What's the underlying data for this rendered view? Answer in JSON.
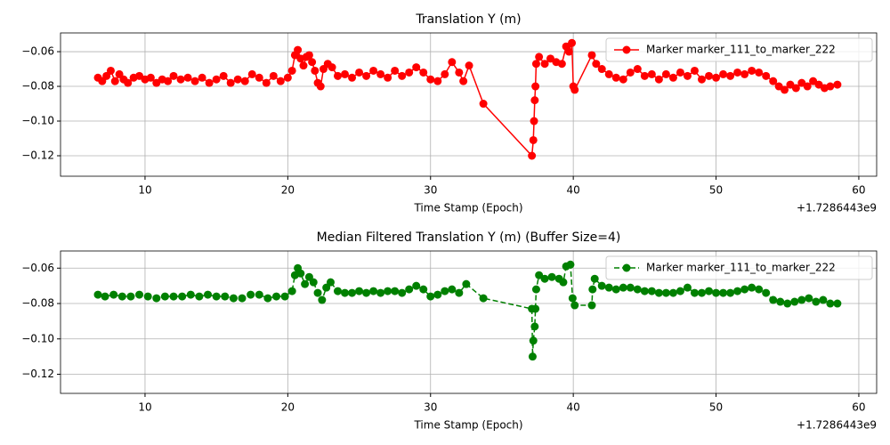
{
  "chart_data": [
    {
      "type": "line",
      "title": "Translation Y (m)",
      "xlabel": "Time Stamp (Epoch)",
      "x_offset_label": "+1.7286443e9",
      "x": [
        6.7,
        7.0,
        7.3,
        7.6,
        7.9,
        8.2,
        8.5,
        8.8,
        9.2,
        9.6,
        10.0,
        10.4,
        10.8,
        11.2,
        11.6,
        12.0,
        12.5,
        13.0,
        13.5,
        14.0,
        14.5,
        15.0,
        15.5,
        16.0,
        16.5,
        17.0,
        17.5,
        18.0,
        18.5,
        19.0,
        19.5,
        20.0,
        20.3,
        20.5,
        20.7,
        20.9,
        21.1,
        21.3,
        21.5,
        21.7,
        21.9,
        22.1,
        22.3,
        22.5,
        22.8,
        23.1,
        23.5,
        24.0,
        24.5,
        25.0,
        25.5,
        26.0,
        26.5,
        27.0,
        27.5,
        28.0,
        28.5,
        29.0,
        29.5,
        30.0,
        30.5,
        31.0,
        31.5,
        32.0,
        32.3,
        32.7,
        33.7,
        37.1,
        37.2,
        37.25,
        37.3,
        37.35,
        37.4,
        37.6,
        38.0,
        38.4,
        38.8,
        39.2,
        39.5,
        39.7,
        39.9,
        40.0,
        40.1,
        41.3,
        41.6,
        42.0,
        42.5,
        43.0,
        43.5,
        44.0,
        44.5,
        45.0,
        45.5,
        46.0,
        46.5,
        47.0,
        47.5,
        48.0,
        48.5,
        49.0,
        49.5,
        50.0,
        50.5,
        51.0,
        51.5,
        52.0,
        52.5,
        53.0,
        53.5,
        54.0,
        54.4,
        54.8,
        55.2,
        55.6,
        56.0,
        56.4,
        56.8,
        57.2,
        57.6,
        58.0,
        58.5
      ],
      "series": [
        {
          "name": "Marker marker_111_to_marker_222",
          "color": "#ff0000",
          "linestyle": "solid",
          "values": [
            -0.075,
            -0.077,
            -0.074,
            -0.071,
            -0.077,
            -0.073,
            -0.076,
            -0.078,
            -0.075,
            -0.074,
            -0.076,
            -0.075,
            -0.078,
            -0.076,
            -0.077,
            -0.074,
            -0.076,
            -0.075,
            -0.077,
            -0.075,
            -0.078,
            -0.076,
            -0.074,
            -0.078,
            -0.076,
            -0.077,
            -0.073,
            -0.075,
            -0.078,
            -0.074,
            -0.077,
            -0.075,
            -0.071,
            -0.062,
            -0.059,
            -0.064,
            -0.068,
            -0.063,
            -0.062,
            -0.066,
            -0.071,
            -0.078,
            -0.08,
            -0.07,
            -0.067,
            -0.069,
            -0.074,
            -0.073,
            -0.075,
            -0.072,
            -0.074,
            -0.071,
            -0.073,
            -0.075,
            -0.071,
            -0.074,
            -0.072,
            -0.069,
            -0.072,
            -0.076,
            -0.077,
            -0.073,
            -0.066,
            -0.072,
            -0.077,
            -0.068,
            -0.09,
            -0.12,
            -0.111,
            -0.1,
            -0.088,
            -0.08,
            -0.067,
            -0.063,
            -0.067,
            -0.064,
            -0.066,
            -0.067,
            -0.057,
            -0.06,
            -0.055,
            -0.08,
            -0.082,
            -0.062,
            -0.067,
            -0.07,
            -0.073,
            -0.075,
            -0.076,
            -0.072,
            -0.07,
            -0.074,
            -0.073,
            -0.076,
            -0.073,
            -0.075,
            -0.072,
            -0.074,
            -0.071,
            -0.076,
            -0.074,
            -0.075,
            -0.073,
            -0.074,
            -0.072,
            -0.073,
            -0.071,
            -0.072,
            -0.074,
            -0.077,
            -0.08,
            -0.082,
            -0.079,
            -0.081,
            -0.078,
            -0.08,
            -0.077,
            -0.079,
            -0.081,
            -0.08,
            -0.079
          ]
        }
      ],
      "xlim": [
        4.08,
        61.25
      ],
      "ylim": [
        -0.1318,
        -0.0492
      ],
      "xticks": [
        10,
        20,
        30,
        40,
        50,
        60
      ],
      "yticks": [
        {
          "value": -0.12,
          "label": "−0.12"
        },
        {
          "value": -0.1,
          "label": "−0.10"
        },
        {
          "value": -0.08,
          "label": "−0.08"
        },
        {
          "value": -0.06,
          "label": "−0.06"
        }
      ],
      "grid": true,
      "legend": "upper right"
    },
    {
      "type": "line",
      "title": "Median Filtered Translation Y (m) (Buffer Size=4)",
      "xlabel": "Time Stamp (Epoch)",
      "x_offset_label": "+1.7286443e9",
      "x": [
        6.7,
        7.2,
        7.8,
        8.4,
        9.0,
        9.6,
        10.2,
        10.8,
        11.4,
        12.0,
        12.6,
        13.2,
        13.8,
        14.4,
        15.0,
        15.6,
        16.2,
        16.8,
        17.4,
        18.0,
        18.6,
        19.2,
        19.8,
        20.3,
        20.5,
        20.7,
        20.9,
        21.2,
        21.5,
        21.8,
        22.1,
        22.4,
        22.7,
        23.0,
        23.5,
        24.0,
        24.5,
        25.0,
        25.5,
        26.0,
        26.5,
        27.0,
        27.5,
        28.0,
        28.5,
        29.0,
        29.5,
        30.0,
        30.5,
        31.0,
        31.5,
        32.0,
        32.5,
        33.7,
        37.1,
        37.15,
        37.2,
        37.3,
        37.35,
        37.4,
        37.6,
        38.0,
        38.5,
        39.0,
        39.3,
        39.5,
        39.8,
        39.95,
        40.1,
        41.3,
        41.35,
        41.5,
        42.0,
        42.5,
        43.0,
        43.5,
        44.0,
        44.5,
        45.0,
        45.5,
        46.0,
        46.5,
        47.0,
        47.5,
        48.0,
        48.5,
        49.0,
        49.5,
        50.0,
        50.5,
        51.0,
        51.5,
        52.0,
        52.5,
        53.0,
        53.5,
        54.0,
        54.5,
        55.0,
        55.5,
        56.0,
        56.5,
        57.0,
        57.5,
        58.0,
        58.5
      ],
      "series": [
        {
          "name": "Marker marker_111_to_marker_222",
          "color": "#008000",
          "linestyle": "dashed",
          "values": [
            -0.075,
            -0.076,
            -0.075,
            -0.076,
            -0.076,
            -0.075,
            -0.076,
            -0.077,
            -0.076,
            -0.076,
            -0.076,
            -0.075,
            -0.076,
            -0.075,
            -0.076,
            -0.076,
            -0.077,
            -0.077,
            -0.075,
            -0.075,
            -0.077,
            -0.076,
            -0.076,
            -0.073,
            -0.064,
            -0.06,
            -0.063,
            -0.069,
            -0.065,
            -0.068,
            -0.074,
            -0.078,
            -0.071,
            -0.068,
            -0.073,
            -0.074,
            -0.074,
            -0.073,
            -0.074,
            -0.073,
            -0.074,
            -0.073,
            -0.073,
            -0.074,
            -0.072,
            -0.07,
            -0.072,
            -0.076,
            -0.075,
            -0.073,
            -0.072,
            -0.074,
            -0.069,
            -0.077,
            -0.083,
            -0.11,
            -0.101,
            -0.093,
            -0.083,
            -0.072,
            -0.064,
            -0.066,
            -0.065,
            -0.066,
            -0.068,
            -0.059,
            -0.058,
            -0.077,
            -0.081,
            -0.081,
            -0.072,
            -0.066,
            -0.07,
            -0.071,
            -0.072,
            -0.071,
            -0.071,
            -0.072,
            -0.073,
            -0.073,
            -0.074,
            -0.074,
            -0.074,
            -0.073,
            -0.071,
            -0.074,
            -0.074,
            -0.073,
            -0.074,
            -0.074,
            -0.074,
            -0.073,
            -0.072,
            -0.071,
            -0.072,
            -0.074,
            -0.078,
            -0.079,
            -0.08,
            -0.079,
            -0.078,
            -0.077,
            -0.079,
            -0.078,
            -0.08,
            -0.08
          ]
        }
      ],
      "xlim": [
        4.08,
        61.25
      ],
      "ylim": [
        -0.1308,
        -0.0503
      ],
      "xticks": [
        10,
        20,
        30,
        40,
        50,
        60
      ],
      "yticks": [
        {
          "value": -0.12,
          "label": "−0.12"
        },
        {
          "value": -0.1,
          "label": "−0.10"
        },
        {
          "value": -0.08,
          "label": "−0.08"
        },
        {
          "value": -0.06,
          "label": "−0.06"
        }
      ],
      "grid": true,
      "legend": "upper right"
    }
  ]
}
